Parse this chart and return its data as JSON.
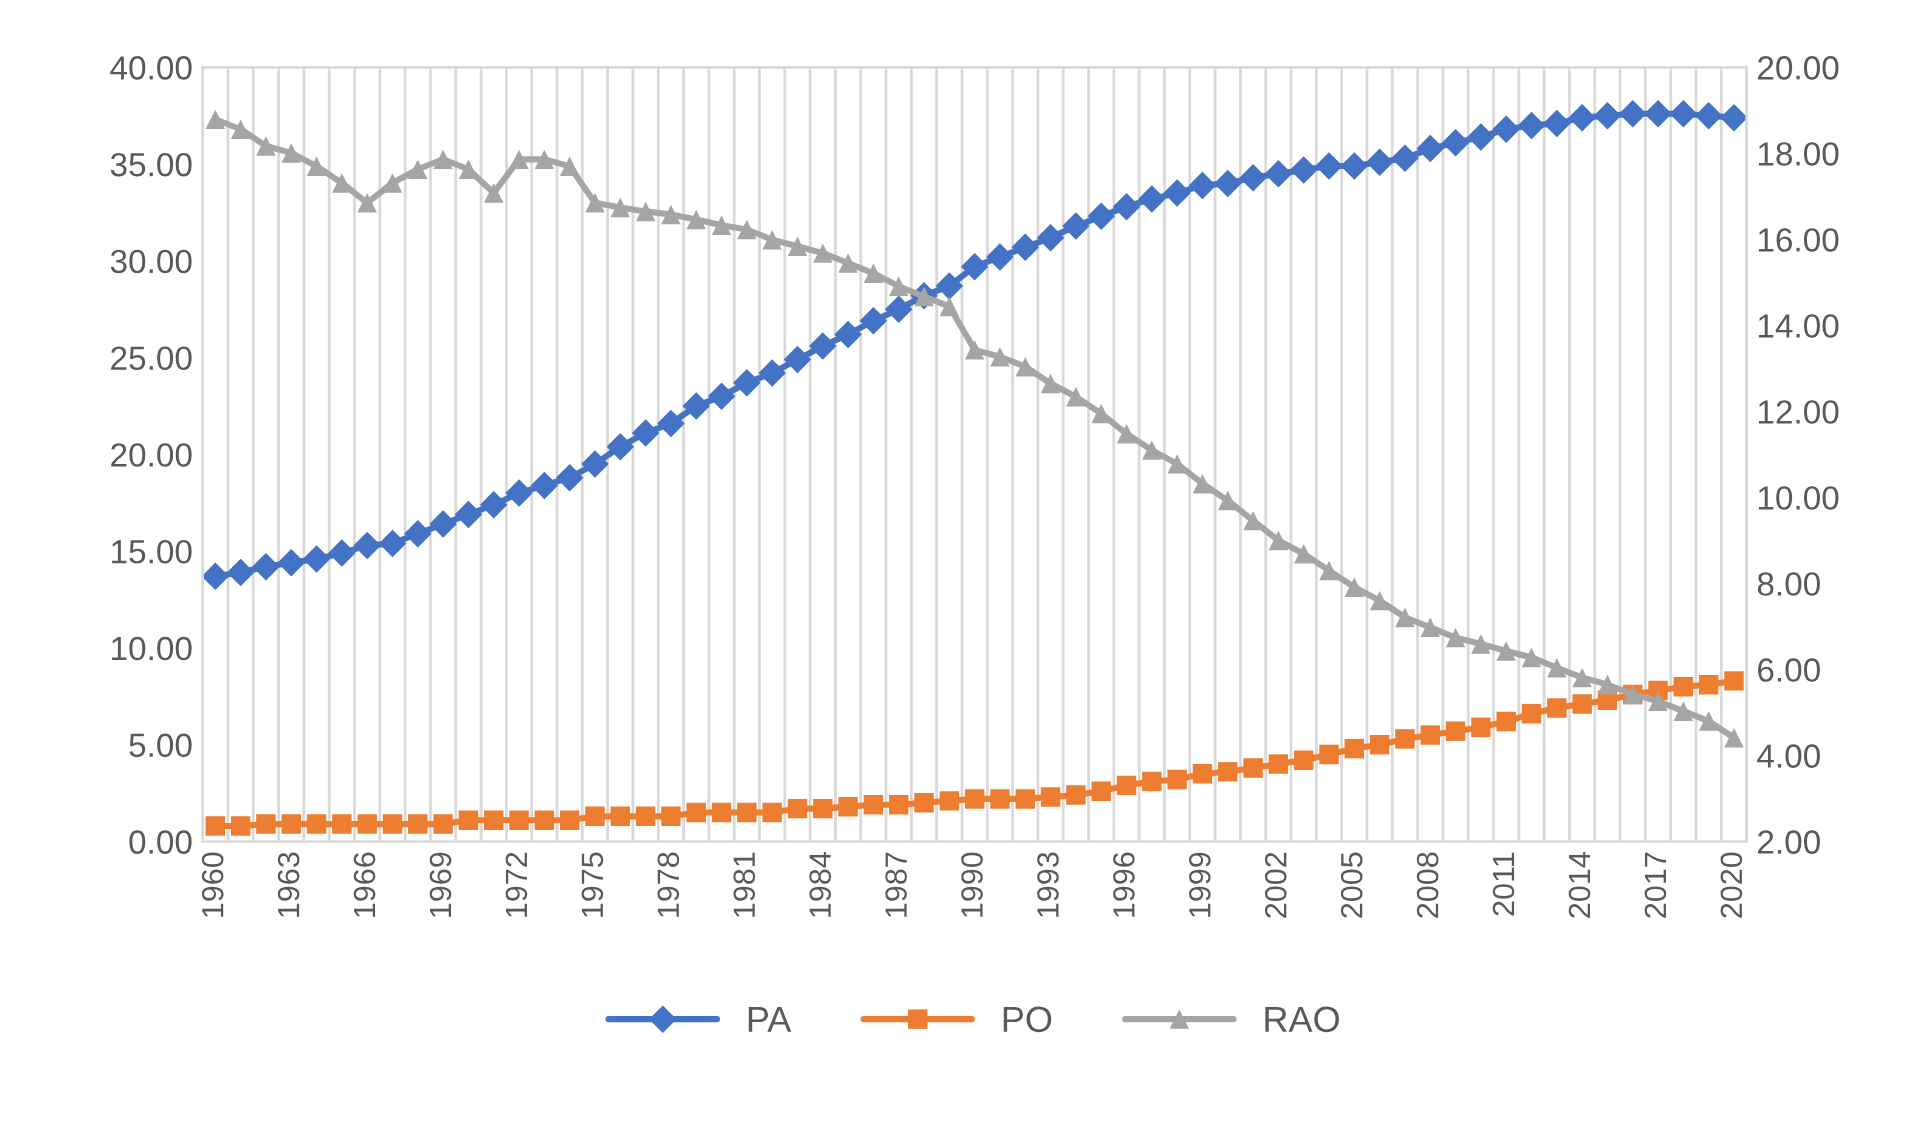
{
  "chart_data": {
    "type": "line",
    "categories": [
      "1960",
      null,
      null,
      "1963",
      null,
      null,
      "1966",
      null,
      null,
      "1969",
      null,
      null,
      "1972",
      null,
      null,
      "1975",
      null,
      null,
      "1978",
      null,
      null,
      "1981",
      null,
      null,
      "1984",
      null,
      null,
      "1987",
      null,
      null,
      "1990",
      null,
      null,
      "1993",
      null,
      null,
      "1996",
      null,
      null,
      "1999",
      null,
      null,
      "2002",
      null,
      null,
      "2005",
      null,
      null,
      "2008",
      null,
      null,
      "2011",
      null,
      null,
      "2014",
      null,
      null,
      "2017",
      null,
      null,
      "2020"
    ],
    "series": [
      {
        "name": "PA",
        "color": "#4472c4",
        "marker": "diamond",
        "values": [
          13.7,
          13.9,
          14.2,
          14.4,
          14.6,
          14.9,
          15.3,
          15.4,
          15.9,
          16.4,
          16.9,
          17.4,
          18.0,
          18.4,
          18.8,
          19.5,
          20.4,
          21.1,
          21.6,
          22.5,
          23.0,
          23.7,
          24.2,
          24.9,
          25.6,
          26.2,
          26.9,
          27.5,
          28.2,
          28.7,
          29.7,
          30.2,
          30.7,
          31.2,
          31.8,
          32.3,
          32.8,
          33.2,
          33.5,
          33.9,
          34.0,
          34.3,
          34.5,
          34.7,
          34.9,
          34.9,
          35.1,
          35.3,
          35.8,
          36.1,
          36.4,
          36.8,
          37.0,
          37.1,
          37.4,
          37.5,
          37.6,
          37.6,
          37.6,
          37.5,
          37.4
        ]
      },
      {
        "name": "PO",
        "color": "#ed7d31",
        "marker": "square",
        "values": [
          0.8,
          0.8,
          0.9,
          0.9,
          0.9,
          0.9,
          0.9,
          0.9,
          0.9,
          0.9,
          1.1,
          1.1,
          1.1,
          1.1,
          1.1,
          1.3,
          1.3,
          1.3,
          1.3,
          1.5,
          1.5,
          1.5,
          1.5,
          1.7,
          1.7,
          1.8,
          1.9,
          1.9,
          2.0,
          2.1,
          2.2,
          2.2,
          2.2,
          2.3,
          2.4,
          2.6,
          2.9,
          3.1,
          3.2,
          3.5,
          3.6,
          3.8,
          4.0,
          4.2,
          4.5,
          4.8,
          5.0,
          5.3,
          5.5,
          5.7,
          5.9,
          6.2,
          6.6,
          6.9,
          7.1,
          7.3,
          7.6,
          7.8,
          8.0,
          8.1,
          8.3
        ]
      },
      {
        "name": "RAO",
        "color": "#a5a5a5",
        "marker": "triangle",
        "axis": "y2",
        "values": [
          18.79,
          18.56,
          18.17,
          18.01,
          17.7,
          17.31,
          16.85,
          17.31,
          17.63,
          17.86,
          17.63,
          17.08,
          17.86,
          17.86,
          17.7,
          16.85,
          16.74,
          16.65,
          16.58,
          16.46,
          16.33,
          16.23,
          15.99,
          15.84,
          15.68,
          15.45,
          15.21,
          14.91,
          14.67,
          14.44,
          13.43,
          13.27,
          13.04,
          12.65,
          12.34,
          11.95,
          11.48,
          11.1,
          10.78,
          10.32,
          9.93,
          9.46,
          9.0,
          8.69,
          8.3,
          7.91,
          7.6,
          7.21,
          6.98,
          6.74,
          6.59,
          6.43,
          6.28,
          6.04,
          5.81,
          5.65,
          5.42,
          5.26,
          5.03,
          4.8,
          4.41
        ]
      }
    ],
    "ylim": [
      0,
      40
    ],
    "yticks": [
      {
        "value": 0,
        "label": "0.00"
      },
      {
        "value": 5,
        "label": "5.00"
      },
      {
        "value": 10,
        "label": "10.00"
      },
      {
        "value": 15,
        "label": "15.00"
      },
      {
        "value": 20,
        "label": "20.00"
      },
      {
        "value": 25,
        "label": "25.00"
      },
      {
        "value": 30,
        "label": "30.00"
      },
      {
        "value": 35,
        "label": "35.00"
      },
      {
        "value": 40,
        "label": "40.00"
      }
    ],
    "y2lim": [
      2,
      20
    ],
    "y2ticks": [
      {
        "value": 2,
        "label": "2.00"
      },
      {
        "value": 4,
        "label": "4.00"
      },
      {
        "value": 6,
        "label": "6.00"
      },
      {
        "value": 8,
        "label": "8.00"
      },
      {
        "value": 10,
        "label": "10.00"
      },
      {
        "value": 12,
        "label": "12.00"
      },
      {
        "value": 14,
        "label": "14.00"
      },
      {
        "value": 16,
        "label": "16.00"
      },
      {
        "value": 18,
        "label": "18.00"
      },
      {
        "value": 20,
        "label": "20.00"
      }
    ],
    "grid": "x",
    "legend": "bottom",
    "line_style": "solid"
  }
}
